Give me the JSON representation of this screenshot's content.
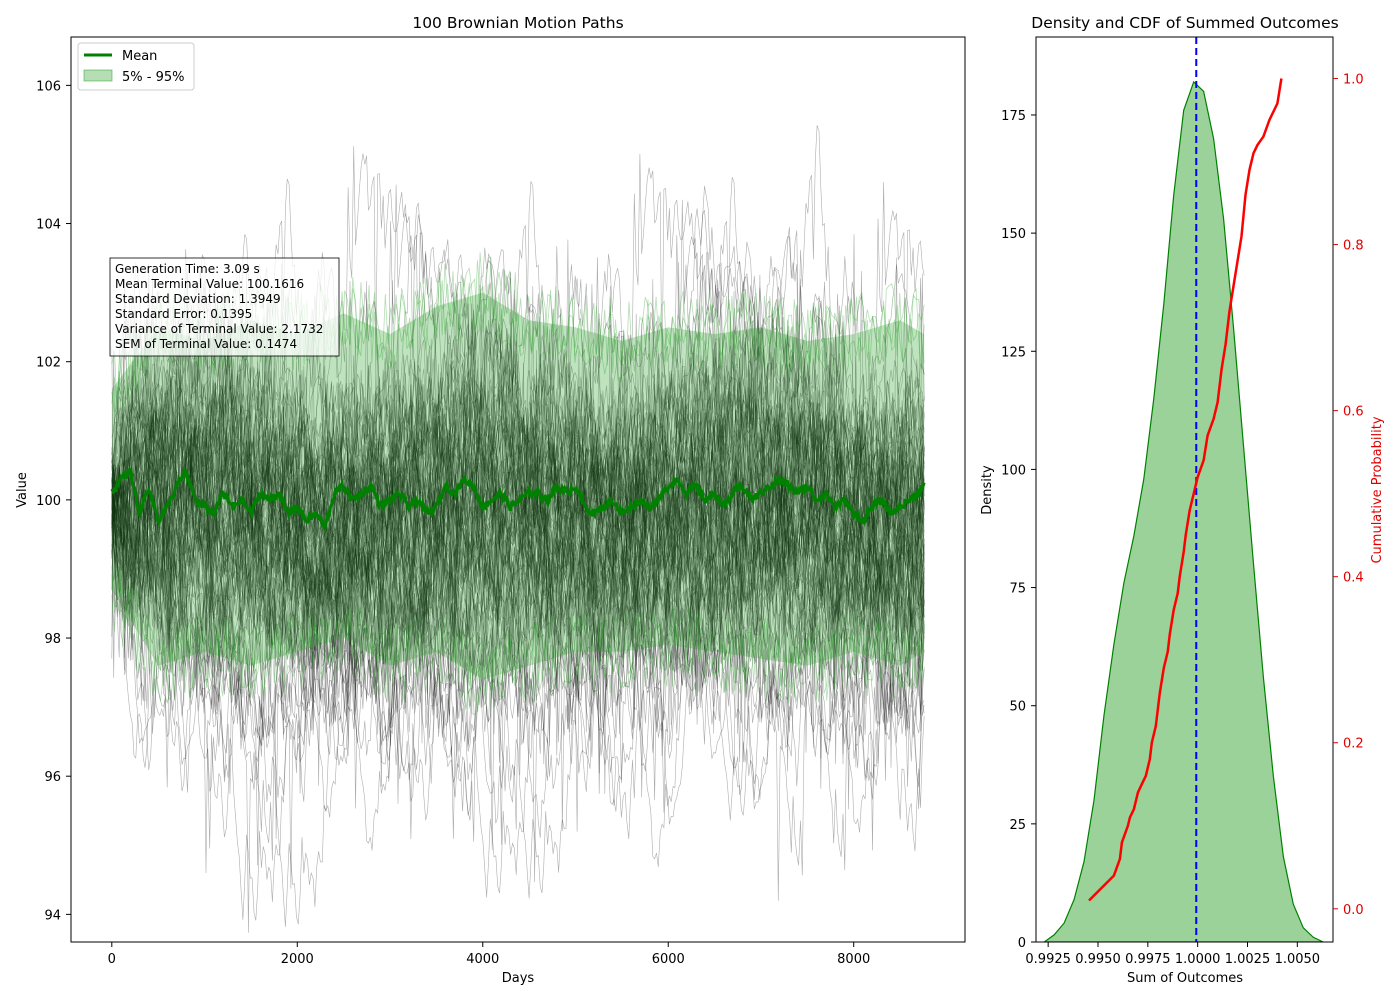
{
  "chart_data": [
    {
      "type": "line",
      "title": "100 Brownian Motion Paths",
      "xlabel": "Days",
      "ylabel": "Value",
      "xlim": [
        -440,
        9200
      ],
      "ylim": [
        93.6,
        106.7
      ],
      "x_ticks": [
        0,
        2000,
        4000,
        6000,
        8000
      ],
      "y_ticks": [
        94,
        96,
        98,
        100,
        102,
        104,
        106
      ],
      "grid": false,
      "legend_position": "top-left",
      "legend": [
        "Mean",
        "5% - 95%"
      ],
      "num_paths": 100,
      "days": 8760,
      "colors": {
        "paths": "#000000",
        "mean": "#008000",
        "band": "#2ca02c"
      },
      "series": [
        {
          "name": "Mean",
          "x": [
            0,
            100,
            200,
            300,
            400,
            500,
            600,
            700,
            800,
            900,
            1000,
            1100,
            1200,
            1300,
            1400,
            1500,
            1600,
            1700,
            1800,
            1900,
            2000,
            2100,
            2200,
            2300,
            2400,
            2500,
            2600,
            2700,
            2800,
            2900,
            3000,
            3100,
            3200,
            3300,
            3400,
            3500,
            3600,
            3700,
            3800,
            3900,
            4000,
            4100,
            4200,
            4300,
            4400,
            4500,
            4600,
            4700,
            4800,
            4900,
            5000,
            5100,
            5200,
            5300,
            5400,
            5500,
            5600,
            5700,
            5800,
            5900,
            6000,
            6100,
            6200,
            6300,
            6400,
            6500,
            6600,
            6700,
            6800,
            6900,
            7000,
            7100,
            7200,
            7300,
            7400,
            7500,
            7600,
            7700,
            7800,
            7900,
            8000,
            8100,
            8200,
            8300,
            8400,
            8500,
            8600,
            8700,
            8760
          ],
          "values": [
            100.1,
            100.3,
            100.4,
            99.8,
            100.2,
            99.7,
            99.9,
            100.2,
            100.4,
            100.0,
            99.9,
            99.8,
            100.1,
            99.9,
            100.0,
            99.8,
            100.1,
            100.0,
            100.1,
            99.8,
            99.9,
            99.7,
            99.8,
            99.6,
            100.1,
            100.2,
            100.0,
            100.1,
            100.2,
            99.9,
            100.0,
            100.1,
            99.9,
            100.0,
            99.8,
            99.9,
            100.2,
            100.1,
            100.3,
            100.2,
            99.9,
            100.0,
            100.1,
            99.9,
            100.0,
            100.1,
            100.1,
            100.0,
            100.2,
            100.1,
            100.2,
            99.9,
            99.8,
            99.9,
            100.0,
            99.8,
            99.9,
            100.0,
            99.9,
            100.0,
            100.2,
            100.3,
            100.1,
            100.2,
            100.0,
            100.1,
            99.9,
            100.1,
            100.2,
            100.0,
            100.1,
            100.2,
            100.3,
            100.2,
            100.1,
            100.2,
            100.0,
            100.1,
            99.9,
            100.0,
            99.8,
            99.7,
            99.9,
            100.0,
            99.8,
            99.9,
            100.0,
            100.1,
            100.2
          ]
        },
        {
          "name": "5% - 95%",
          "x": [
            0,
            500,
            1000,
            1500,
            2000,
            2500,
            3000,
            3500,
            4000,
            4500,
            5000,
            5500,
            6000,
            6500,
            7000,
            7500,
            8000,
            8500,
            8760
          ],
          "lower": [
            98.7,
            97.6,
            97.8,
            97.6,
            97.8,
            98.0,
            97.6,
            97.8,
            97.4,
            97.6,
            97.8,
            97.8,
            97.9,
            97.8,
            97.7,
            97.6,
            97.8,
            97.6,
            97.8
          ],
          "upper": [
            101.6,
            102.5,
            102.3,
            102.6,
            102.4,
            102.7,
            102.4,
            102.8,
            103.0,
            102.6,
            102.5,
            102.3,
            102.5,
            102.4,
            102.5,
            102.3,
            102.4,
            102.6,
            102.4
          ]
        }
      ],
      "annotation": [
        "Generation Time: 3.09 s",
        "Mean Terminal Value: 100.1616",
        "Standard Deviation: 1.3949",
        "Standard Error: 0.1395",
        "Variance of Terminal Value: 2.1732",
        "SEM of Terminal Value: 0.1474"
      ]
    },
    {
      "type": "area",
      "title": "Density and CDF of Summed Outcomes",
      "xlabel": "Sum of Outcomes",
      "ylabel": "Density",
      "y2label": "Cumulative Probability",
      "xlim": [
        0.99189,
        1.00679
      ],
      "ylim": [
        0,
        191.5
      ],
      "y2lim": [
        -0.04,
        1.05
      ],
      "x_tick_labels": [
        "0.9925",
        "0.9950",
        "0.9975",
        "1.0000",
        "1.0025",
        "1.0050"
      ],
      "x_ticks": [
        0.9925,
        0.995,
        0.9975,
        1.0,
        1.0025,
        1.005
      ],
      "y_ticks": [
        0,
        25,
        50,
        75,
        100,
        125,
        150,
        175
      ],
      "y2_ticks": [
        0.0,
        0.2,
        0.4,
        0.6,
        0.8,
        1.0
      ],
      "y2_tick_labels": [
        "0.0",
        "0.2",
        "0.4",
        "0.6",
        "0.8",
        "1.0"
      ],
      "mean_line_x": 0.99993,
      "colors": {
        "density_fill": "#2ca02c",
        "density_line": "#008000",
        "cdf": "#ff0000",
        "mean_line": "#0000ff",
        "y2_label": "#ff0000"
      },
      "series": [
        {
          "name": "Density",
          "x": [
            0.9923,
            0.9928,
            0.9933,
            0.9938,
            0.9943,
            0.9948,
            0.9953,
            0.9958,
            0.9963,
            0.9968,
            0.9973,
            0.9978,
            0.9983,
            0.9988,
            0.9993,
            0.9998,
            1.0003,
            1.0008,
            1.0013,
            1.0018,
            1.0023,
            1.0028,
            1.0033,
            1.0038,
            1.0043,
            1.0048,
            1.0053,
            1.0058,
            1.0063
          ],
          "values": [
            0,
            1.5,
            4,
            9,
            17,
            30,
            48,
            63,
            76,
            86,
            98,
            115,
            135,
            158,
            176,
            182,
            180,
            170,
            153,
            130,
            105,
            80,
            56,
            35,
            18,
            8,
            3,
            1,
            0
          ]
        },
        {
          "name": "CDF",
          "x": [
            0.99455,
            0.9958,
            0.9961,
            0.9962,
            0.9965,
            0.9966,
            0.9968,
            0.997,
            0.9972,
            0.9974,
            0.9976,
            0.9977,
            0.9979,
            0.998,
            0.9981,
            0.9983,
            0.9985,
            0.9986,
            0.9988,
            0.999,
            0.9991,
            0.9993,
            0.9994,
            0.9996,
            0.9998,
            1.0,
            1.0003,
            1.0005,
            1.0008,
            1.001,
            1.0012,
            1.0014,
            1.0016,
            1.0018,
            1.002,
            1.0022,
            1.0024,
            1.0026,
            1.0028,
            1.003,
            1.0033,
            1.0036,
            1.004,
            1.0042
          ],
          "values": [
            0.01,
            0.04,
            0.06,
            0.08,
            0.1,
            0.11,
            0.12,
            0.14,
            0.15,
            0.16,
            0.18,
            0.2,
            0.22,
            0.24,
            0.26,
            0.29,
            0.31,
            0.33,
            0.36,
            0.38,
            0.4,
            0.43,
            0.45,
            0.48,
            0.5,
            0.52,
            0.54,
            0.57,
            0.59,
            0.61,
            0.65,
            0.68,
            0.72,
            0.75,
            0.78,
            0.81,
            0.86,
            0.89,
            0.91,
            0.92,
            0.93,
            0.95,
            0.97,
            1.0
          ]
        }
      ]
    }
  ]
}
